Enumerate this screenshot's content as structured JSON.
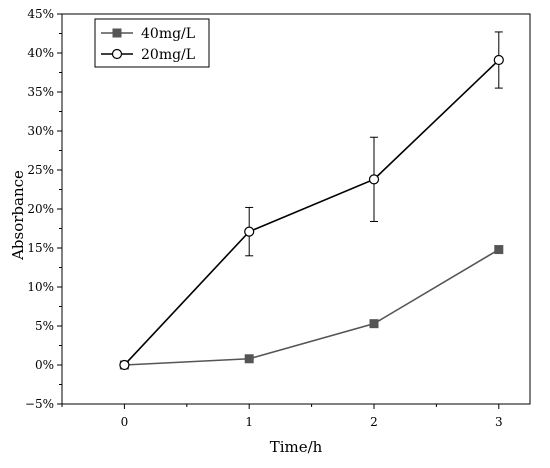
{
  "chart_data": {
    "type": "line",
    "title": "",
    "xlabel": "Time/h",
    "ylabel": "Absorbance",
    "x": [
      0,
      1,
      2,
      3
    ],
    "xlim": [
      -0.5,
      3.25
    ],
    "ylim": [
      -5,
      45
    ],
    "x_ticks": [
      "0",
      "1",
      "2",
      "3"
    ],
    "y_ticks": [
      "−5%",
      "0%",
      "5%",
      "10%",
      "15%",
      "20%",
      "25%",
      "30%",
      "35%",
      "40%",
      "45%"
    ],
    "y_tick_values": [
      -5,
      0,
      5,
      10,
      15,
      20,
      25,
      30,
      35,
      40,
      45
    ],
    "grid": false,
    "legend_position": "top-left",
    "series": [
      {
        "name": "40mg/L",
        "values": [
          0,
          0.8,
          5.3,
          14.8
        ],
        "marker": "filled-square",
        "color": "#555555",
        "error": [
          0,
          0,
          0,
          0
        ]
      },
      {
        "name": "20mg/L",
        "values": [
          0,
          17.1,
          23.8,
          39.1
        ],
        "marker": "open-circle",
        "color": "#000000",
        "error": [
          0,
          3.1,
          5.4,
          3.6
        ]
      }
    ]
  }
}
